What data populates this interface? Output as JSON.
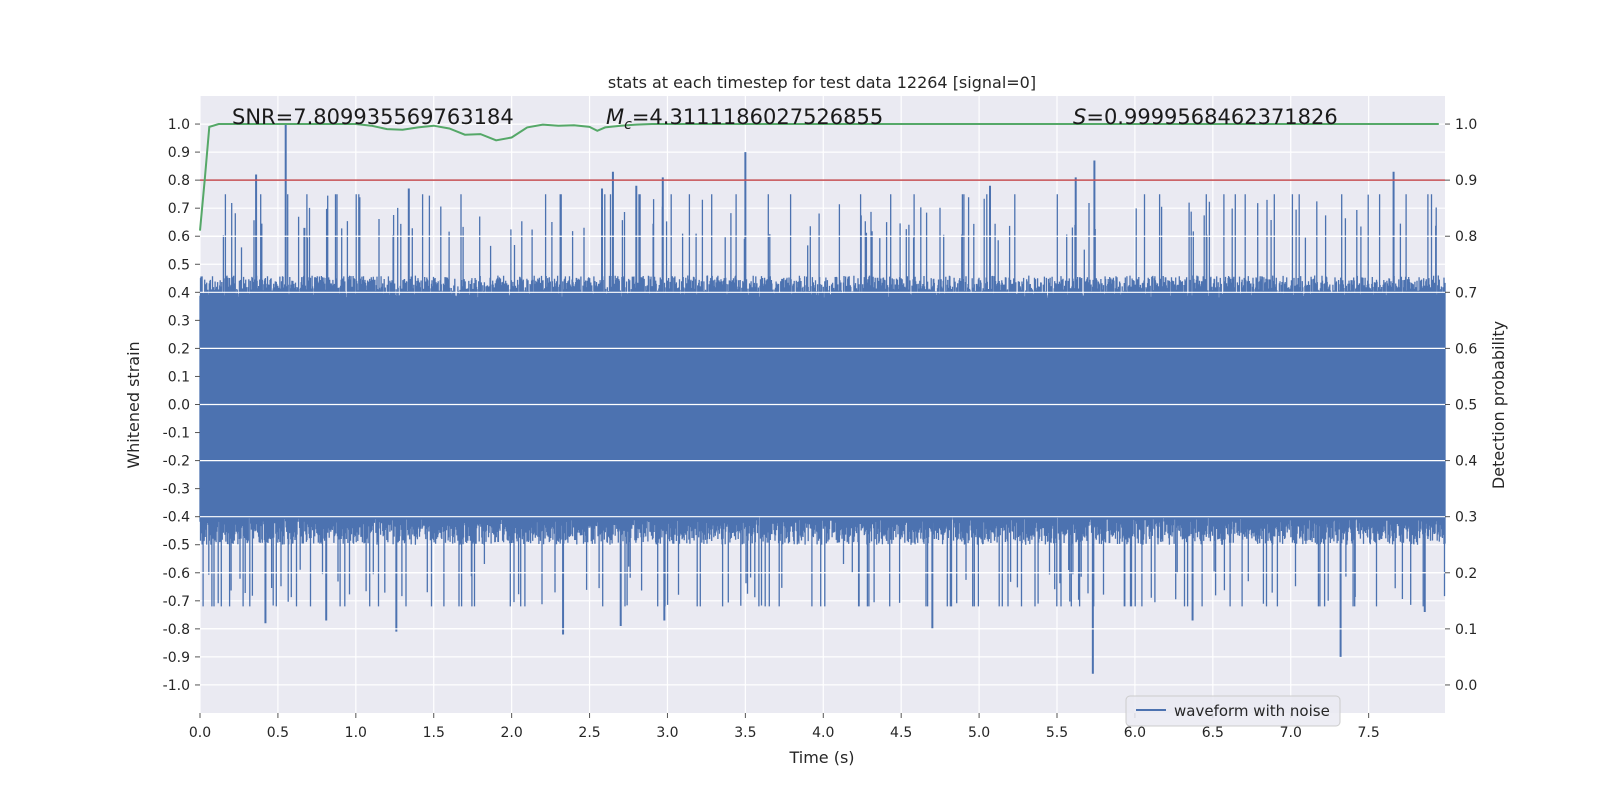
{
  "chart_data": {
    "type": "line",
    "title": "stats at each timestep for test data 12264 [signal=0]",
    "xlabel": "Time (s)",
    "ylabel": "Whitened strain",
    "y2label": "Detection probability",
    "xlim": [
      0.0,
      7.99
    ],
    "ylim": [
      -1.1,
      1.1
    ],
    "y2lim": [
      -0.05,
      1.05
    ],
    "xticks": [
      "0.0",
      "0.5",
      "1.0",
      "1.5",
      "2.0",
      "2.5",
      "3.0",
      "3.5",
      "4.0",
      "4.5",
      "5.0",
      "5.5",
      "6.0",
      "6.5",
      "7.0",
      "7.5"
    ],
    "yticks": [
      "1.0",
      "0.9",
      "0.8",
      "0.7",
      "0.6",
      "0.5",
      "0.4",
      "0.3",
      "0.2",
      "0.1",
      "0.0",
      "-0.1",
      "-0.2",
      "-0.3",
      "-0.4",
      "-0.5",
      "-0.6",
      "-0.7",
      "-0.8",
      "-0.9",
      "-1.0"
    ],
    "y2ticks": [
      "1.0",
      "0.9",
      "0.8",
      "0.7",
      "0.6",
      "0.5",
      "0.4",
      "0.3",
      "0.2",
      "0.1",
      "0.0"
    ],
    "grid": true,
    "annotations": {
      "snr": "SNR=7.809935569763184",
      "mc": "=4.3111186027526855",
      "s": "=0.9999568462371826"
    },
    "legend": {
      "position": "lower-right",
      "entries": [
        "waveform with noise"
      ]
    },
    "colors": {
      "waveform": "#4c72b0",
      "probability": "#55a868",
      "threshold": "#c44e52",
      "background": "#eaeaf2",
      "grid": "#ffffff"
    },
    "threshold": 0.9,
    "series": [
      {
        "name": "waveform with noise",
        "axis": "left",
        "style": "dense-oscillation",
        "core_band": [
          -0.42,
          0.4
        ],
        "peaks": [
          {
            "x": 0.36,
            "y": 0.82
          },
          {
            "x": 0.55,
            "y": 1.0
          },
          {
            "x": 0.67,
            "y": 0.63
          },
          {
            "x": 1.34,
            "y": 0.77
          },
          {
            "x": 2.58,
            "y": 0.77
          },
          {
            "x": 2.65,
            "y": 0.83
          },
          {
            "x": 2.8,
            "y": 0.78
          },
          {
            "x": 2.97,
            "y": 0.81
          },
          {
            "x": 3.5,
            "y": 0.9
          },
          {
            "x": 5.07,
            "y": 0.78
          },
          {
            "x": 5.62,
            "y": 0.81
          },
          {
            "x": 5.74,
            "y": 0.87
          },
          {
            "x": 7.66,
            "y": 0.83
          }
        ],
        "troughs": [
          {
            "x": 0.42,
            "y": -0.78
          },
          {
            "x": 0.81,
            "y": -0.77
          },
          {
            "x": 1.26,
            "y": -0.81
          },
          {
            "x": 2.33,
            "y": -0.82
          },
          {
            "x": 2.7,
            "y": -0.79
          },
          {
            "x": 2.98,
            "y": -0.77
          },
          {
            "x": 4.7,
            "y": -0.8
          },
          {
            "x": 5.73,
            "y": -0.96
          },
          {
            "x": 6.37,
            "y": -0.77
          },
          {
            "x": 7.32,
            "y": -0.9
          },
          {
            "x": 7.86,
            "y": -0.74
          }
        ]
      },
      {
        "name": "",
        "axis": "right",
        "x": [
          0.0,
          0.03,
          0.06,
          0.12,
          0.2,
          0.5,
          0.9,
          1.0,
          1.1,
          1.2,
          1.3,
          1.4,
          1.5,
          1.6,
          1.7,
          1.8,
          1.9,
          2.0,
          2.1,
          2.2,
          2.3,
          2.4,
          2.5,
          2.55,
          2.6,
          2.7,
          2.8,
          2.9,
          3.0,
          3.5,
          4.0,
          5.0,
          6.0,
          7.0,
          7.95
        ],
        "y": [
          0.81,
          0.9,
          0.995,
          1.0,
          1.0,
          1.0,
          1.0,
          1.0,
          0.997,
          0.991,
          0.99,
          0.994,
          0.997,
          0.992,
          0.981,
          0.982,
          0.971,
          0.976,
          0.994,
          0.999,
          0.997,
          0.998,
          0.995,
          0.988,
          0.994,
          0.997,
          0.999,
          1.0,
          1.0,
          1.0,
          1.0,
          1.0,
          1.0,
          1.0,
          1.0
        ]
      }
    ]
  }
}
